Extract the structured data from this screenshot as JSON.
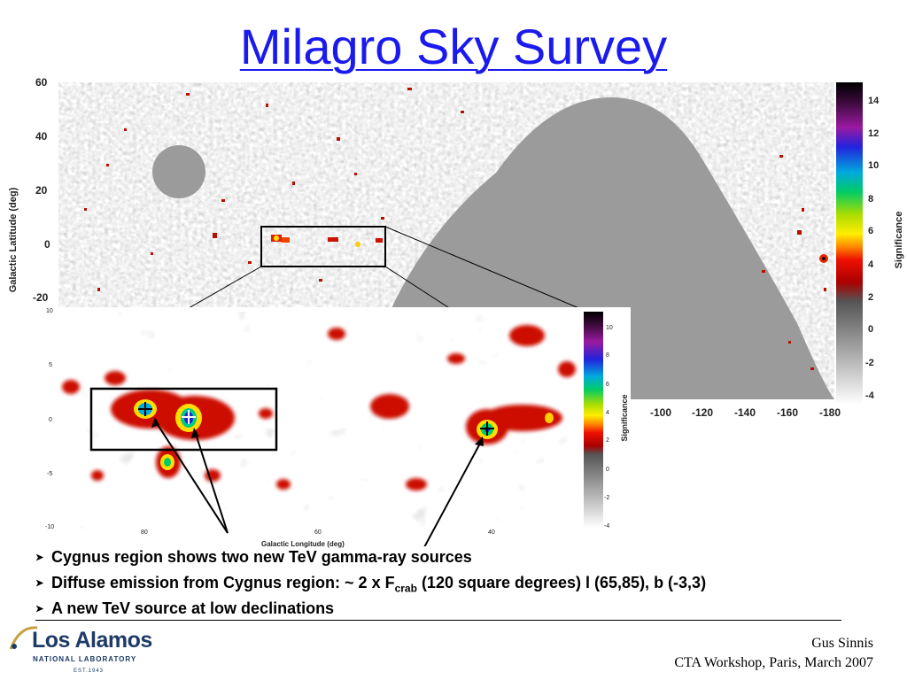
{
  "title": "Milagro Sky Survey",
  "main_map": {
    "y_axis_label": "Galactic Latitude (deg)",
    "y_ticks": [
      "60",
      "40",
      "20",
      "0",
      "-20"
    ],
    "x_ticks": [
      "-100",
      "-120",
      "-140",
      "-160",
      "-180"
    ],
    "colorbar_label": "Significance",
    "colorbar_ticks": [
      "14",
      "12",
      "10",
      "8",
      "6",
      "4",
      "2",
      "0",
      "-2",
      "-4"
    ]
  },
  "inset_map": {
    "y_ticks": [
      "10",
      "5",
      "0",
      "-5",
      "-10"
    ],
    "x_ticks": [
      "80",
      "60",
      "40"
    ],
    "x_axis_label": "Galactic Longitude (deg)",
    "colorbar_label": "Significance",
    "colorbar_ticks": [
      "10",
      "8",
      "6",
      "4",
      "2",
      "0",
      "-2",
      "-4"
    ]
  },
  "bullets": [
    {
      "text": "Cygnus region shows two new TeV gamma-ray sources"
    },
    {
      "pre": "Diffuse emission from Cygnus region: ~ 2 x F",
      "sub": "crab",
      "post": " (120 square degrees) l (65,85), b (-3,3)"
    },
    {
      "text": "A new TeV source at low declinations"
    }
  ],
  "footer": {
    "author": "Gus Sinnis",
    "event": "CTA Workshop, Paris, March 2007"
  },
  "logo": {
    "name": "Los Alamos",
    "subtitle": "NATIONAL LABORATORY",
    "established": "EST.1943"
  },
  "colors": {
    "title": "#1a1aee",
    "map_gray": "#9b9b9b",
    "excess_red": "#cc1100",
    "logo_blue": "#1e3a66"
  }
}
